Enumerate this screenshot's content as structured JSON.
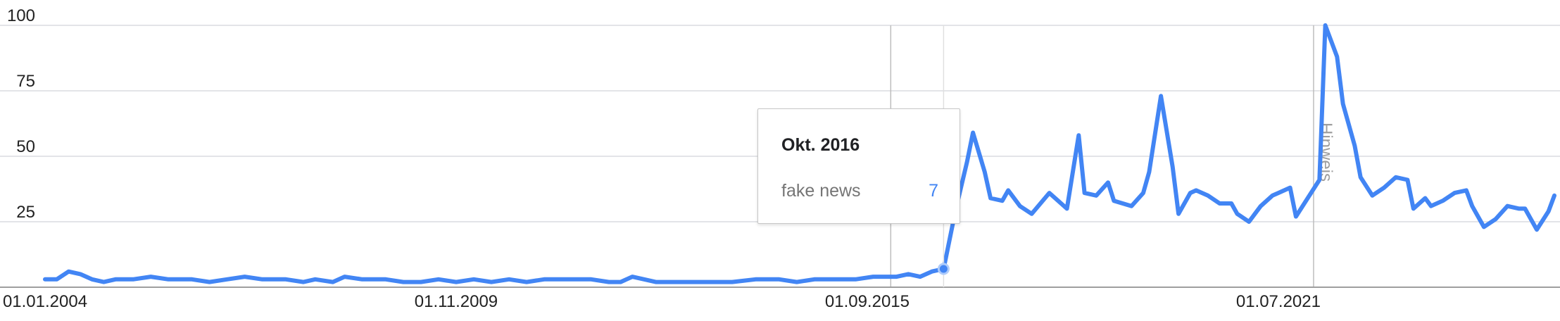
{
  "chart_data": {
    "type": "line",
    "y_ticks": [
      "25",
      "50",
      "75",
      "100"
    ],
    "ylim": [
      0,
      100
    ],
    "x_tick_labels": [
      "01.01.2004",
      "01.11.2009",
      "01.09.2015",
      "01.07.2021"
    ],
    "x_tick_dates": [
      "2004-01",
      "2009-11",
      "2015-09",
      "2021-07"
    ],
    "xlim": [
      "2004-01",
      "2025-06"
    ],
    "grid": true,
    "annotations": [
      {
        "label": "Hinweis",
        "date": "2016-01"
      },
      {
        "label": "Hinweis",
        "date": "2022-01"
      }
    ],
    "highlight": {
      "date": "2016-10",
      "value": 7
    },
    "series": [
      {
        "name": "fake news",
        "color": "#4285f4",
        "points": [
          [
            "2004-01",
            3
          ],
          [
            "2004-03",
            3
          ],
          [
            "2004-05",
            6
          ],
          [
            "2004-07",
            5
          ],
          [
            "2004-09",
            3
          ],
          [
            "2004-11",
            2
          ],
          [
            "2005-01",
            3
          ],
          [
            "2005-04",
            3
          ],
          [
            "2005-07",
            4
          ],
          [
            "2005-10",
            3
          ],
          [
            "2006-02",
            3
          ],
          [
            "2006-05",
            2
          ],
          [
            "2006-08",
            3
          ],
          [
            "2006-11",
            4
          ],
          [
            "2007-02",
            3
          ],
          [
            "2007-06",
            3
          ],
          [
            "2007-09",
            2
          ],
          [
            "2007-11",
            3
          ],
          [
            "2008-02",
            2
          ],
          [
            "2008-04",
            4
          ],
          [
            "2008-07",
            3
          ],
          [
            "2008-11",
            3
          ],
          [
            "2009-02",
            2
          ],
          [
            "2009-05",
            2
          ],
          [
            "2009-08",
            3
          ],
          [
            "2009-11",
            2
          ],
          [
            "2010-02",
            3
          ],
          [
            "2010-05",
            2
          ],
          [
            "2010-08",
            3
          ],
          [
            "2010-11",
            2
          ],
          [
            "2011-02",
            3
          ],
          [
            "2011-06",
            3
          ],
          [
            "2011-10",
            3
          ],
          [
            "2012-01",
            2
          ],
          [
            "2012-03",
            2
          ],
          [
            "2012-05",
            4
          ],
          [
            "2012-07",
            3
          ],
          [
            "2012-09",
            2
          ],
          [
            "2013-01",
            2
          ],
          [
            "2013-06",
            2
          ],
          [
            "2013-10",
            2
          ],
          [
            "2014-02",
            3
          ],
          [
            "2014-06",
            3
          ],
          [
            "2014-09",
            2
          ],
          [
            "2014-12",
            3
          ],
          [
            "2015-03",
            3
          ],
          [
            "2015-07",
            3
          ],
          [
            "2015-10",
            4
          ],
          [
            "2015-12",
            4
          ],
          [
            "2016-02",
            4
          ],
          [
            "2016-04",
            5
          ],
          [
            "2016-06",
            4
          ],
          [
            "2016-08",
            6
          ],
          [
            "2016-10",
            7
          ],
          [
            "2016-12",
            29
          ],
          [
            "2017-02",
            48
          ],
          [
            "2017-03",
            59
          ],
          [
            "2017-05",
            44
          ],
          [
            "2017-06",
            34
          ],
          [
            "2017-08",
            33
          ],
          [
            "2017-09",
            37
          ],
          [
            "2017-11",
            31
          ],
          [
            "2018-01",
            28
          ],
          [
            "2018-04",
            36
          ],
          [
            "2018-07",
            30
          ],
          [
            "2018-09",
            58
          ],
          [
            "2018-10",
            36
          ],
          [
            "2018-12",
            35
          ],
          [
            "2019-02",
            40
          ],
          [
            "2019-03",
            33
          ],
          [
            "2019-06",
            31
          ],
          [
            "2019-08",
            36
          ],
          [
            "2019-09",
            44
          ],
          [
            "2019-11",
            73
          ],
          [
            "2020-01",
            46
          ],
          [
            "2020-02",
            28
          ],
          [
            "2020-04",
            36
          ],
          [
            "2020-05",
            37
          ],
          [
            "2020-07",
            35
          ],
          [
            "2020-09",
            32
          ],
          [
            "2020-11",
            32
          ],
          [
            "2020-12",
            28
          ],
          [
            "2021-02",
            25
          ],
          [
            "2021-04",
            31
          ],
          [
            "2021-06",
            35
          ],
          [
            "2021-07",
            36
          ],
          [
            "2021-09",
            38
          ],
          [
            "2021-10",
            27
          ],
          [
            "2021-12",
            34
          ],
          [
            "2022-02",
            41
          ],
          [
            "2022-03",
            100
          ],
          [
            "2022-05",
            88
          ],
          [
            "2022-06",
            70
          ],
          [
            "2022-08",
            54
          ],
          [
            "2022-09",
            42
          ],
          [
            "2022-11",
            35
          ],
          [
            "2023-01",
            38
          ],
          [
            "2023-03",
            42
          ],
          [
            "2023-05",
            41
          ],
          [
            "2023-06",
            30
          ],
          [
            "2023-08",
            34
          ],
          [
            "2023-09",
            31
          ],
          [
            "2023-11",
            33
          ],
          [
            "2024-01",
            36
          ],
          [
            "2024-03",
            37
          ],
          [
            "2024-04",
            31
          ],
          [
            "2024-06",
            23
          ],
          [
            "2024-08",
            26
          ],
          [
            "2024-10",
            31
          ],
          [
            "2024-12",
            30
          ],
          [
            "2025-01",
            30
          ],
          [
            "2025-03",
            22
          ],
          [
            "2025-05",
            29
          ],
          [
            "2025-06",
            35
          ]
        ]
      }
    ]
  },
  "tooltip": {
    "title": "Okt. 2016",
    "series_name": "fake news",
    "value": "7"
  }
}
